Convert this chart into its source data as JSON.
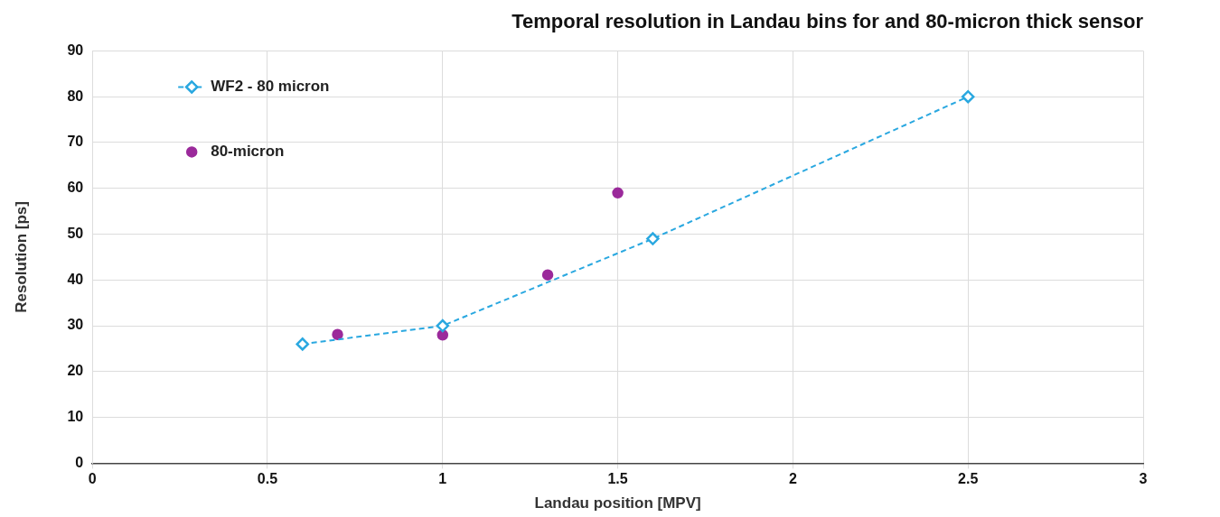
{
  "chart_data": {
    "type": "line",
    "title": "Temporal resolution in Landau bins for and 80-micron thick sensor",
    "xlabel": "Landau position [MPV]",
    "ylabel": "Resolution [ps]",
    "xlim": [
      0,
      3
    ],
    "xticks": [
      0,
      0.5,
      1,
      1.5,
      2,
      2.5,
      3
    ],
    "ylim": [
      0,
      90
    ],
    "yticks": [
      0,
      10,
      20,
      30,
      40,
      50,
      60,
      70,
      80,
      90
    ],
    "grid": true,
    "legend": "top left",
    "series": [
      {
        "name": "WF2 - 80 micron",
        "type": "line",
        "color": "#2aa8e0",
        "marker": "diamond",
        "line_style": "dashed",
        "x": [
          0.6,
          1,
          1.6,
          2.5
        ],
        "values": [
          26,
          30,
          49,
          80
        ]
      },
      {
        "name": "80-micron",
        "type": "scatter",
        "color": "#9b2a9b",
        "marker": "circle",
        "x": [
          0.7,
          1,
          1.3,
          1.5
        ],
        "values": [
          28.1,
          28,
          41.1,
          59
        ]
      }
    ]
  }
}
